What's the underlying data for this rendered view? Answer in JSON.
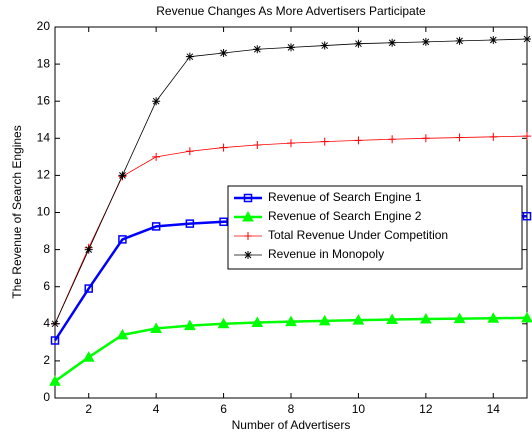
{
  "chart_data": {
    "type": "line",
    "title": "Revenue Changes As More Advertisers Participate",
    "xlabel": "Number of Advertisers",
    "ylabel": "The Revenue of Search Engines",
    "x": [
      1,
      2,
      3,
      4,
      5,
      6,
      7,
      8,
      9,
      10,
      11,
      12,
      13,
      14,
      15
    ],
    "xlim": [
      1,
      15
    ],
    "xticks": [
      2,
      4,
      6,
      8,
      10,
      12,
      14
    ],
    "ylim": [
      0,
      20
    ],
    "yticks": [
      0,
      2,
      4,
      6,
      8,
      10,
      12,
      14,
      16,
      18,
      20
    ],
    "grid": false,
    "legend_location": "east",
    "series": [
      {
        "name": "Revenue of Search Engine 1",
        "color": "#0000ff",
        "marker": "square",
        "linewidth": 2.5,
        "values": [
          3.1,
          5.9,
          8.55,
          9.25,
          9.4,
          9.5,
          9.57,
          9.62,
          9.66,
          9.69,
          9.72,
          9.74,
          9.76,
          9.78,
          9.8
        ]
      },
      {
        "name": "Revenue of Search Engine 2",
        "color": "#00ff00",
        "marker": "triangle",
        "linewidth": 2.5,
        "values": [
          0.9,
          2.2,
          3.4,
          3.75,
          3.9,
          4.0,
          4.07,
          4.12,
          4.16,
          4.2,
          4.23,
          4.26,
          4.28,
          4.3,
          4.32
        ]
      },
      {
        "name": "Total Revenue Under Competition",
        "color": "#ff0000",
        "marker": "plus",
        "linewidth": 0.8,
        "values": [
          4.0,
          8.1,
          11.95,
          13.0,
          13.3,
          13.5,
          13.64,
          13.74,
          13.82,
          13.89,
          13.95,
          14.0,
          14.04,
          14.08,
          14.12
        ]
      },
      {
        "name": "Revenue in Monopoly",
        "color": "#000000",
        "marker": "asterisk",
        "linewidth": 0.8,
        "values": [
          4.0,
          8.0,
          12.0,
          16.0,
          18.4,
          18.6,
          18.8,
          18.9,
          19.0,
          19.1,
          19.15,
          19.2,
          19.25,
          19.3,
          19.35
        ]
      }
    ]
  }
}
